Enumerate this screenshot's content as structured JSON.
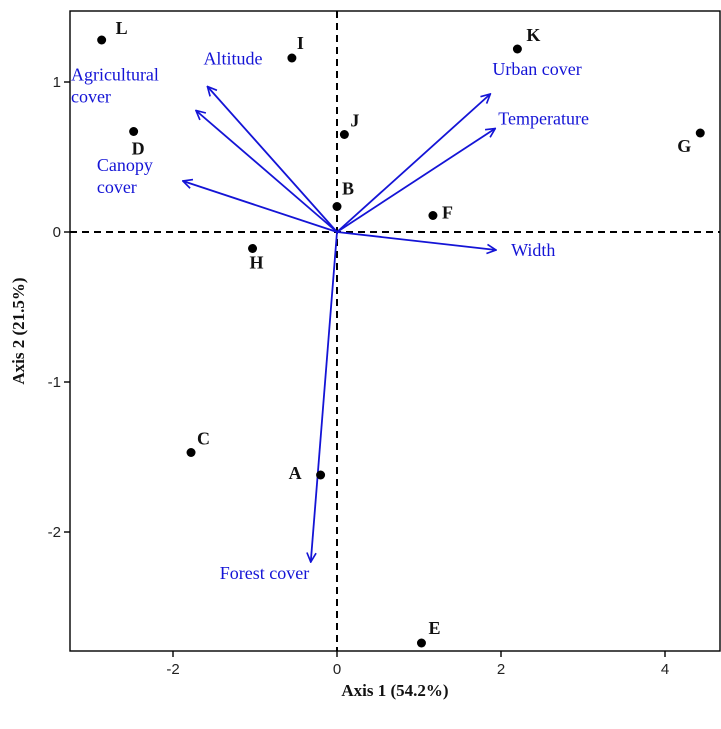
{
  "chart_data": {
    "type": "scatter",
    "xlabel": "Axis 1 (54.2%)",
    "ylabel": "Axis 2 (21.5%)",
    "xlim": [
      -3.2,
      4.5
    ],
    "ylim": [
      -2.8,
      1.45
    ],
    "x_ticks": [
      -2,
      0,
      2,
      4
    ],
    "y_ticks": [
      -2,
      -1,
      0,
      1
    ],
    "grid": false,
    "reference_lines": {
      "x": 0,
      "y": 0,
      "style": "dashed"
    },
    "point_color": "#000000",
    "vector_color": "#1414d6",
    "points": [
      {
        "label": "A",
        "x": -0.2,
        "y": -1.62
      },
      {
        "label": "B",
        "x": 0.0,
        "y": 0.17
      },
      {
        "label": "C",
        "x": -1.78,
        "y": -1.47
      },
      {
        "label": "D",
        "x": -2.48,
        "y": 0.67
      },
      {
        "label": "E",
        "x": 1.03,
        "y": -2.74
      },
      {
        "label": "F",
        "x": 1.17,
        "y": 0.11
      },
      {
        "label": "G",
        "x": 4.43,
        "y": 0.66
      },
      {
        "label": "H",
        "x": -1.03,
        "y": -0.11
      },
      {
        "label": "I",
        "x": -0.55,
        "y": 1.16
      },
      {
        "label": "J",
        "x": 0.09,
        "y": 0.65
      },
      {
        "label": "K",
        "x": 2.2,
        "y": 1.22
      },
      {
        "label": "L",
        "x": -2.87,
        "y": 1.28
      }
    ],
    "vectors": [
      {
        "name": "Altitude",
        "lines": [
          "Altitude"
        ],
        "x": -1.58,
        "y": 0.97
      },
      {
        "name": "Agricultural cover",
        "lines": [
          "Agricultural",
          "cover"
        ],
        "x": -1.72,
        "y": 0.81
      },
      {
        "name": "Canopy cover",
        "lines": [
          "Canopy",
          "cover"
        ],
        "x": -1.88,
        "y": 0.34
      },
      {
        "name": "Urban cover",
        "lines": [
          "Urban cover"
        ],
        "x": 1.87,
        "y": 0.92
      },
      {
        "name": "Temperature",
        "lines": [
          "Temperature"
        ],
        "x": 1.93,
        "y": 0.69
      },
      {
        "name": "Width",
        "lines": [
          "Width"
        ],
        "x": 1.94,
        "y": -0.12
      },
      {
        "name": "Forest cover",
        "lines": [
          "Forest cover"
        ],
        "x": -0.32,
        "y": -2.2
      }
    ]
  }
}
